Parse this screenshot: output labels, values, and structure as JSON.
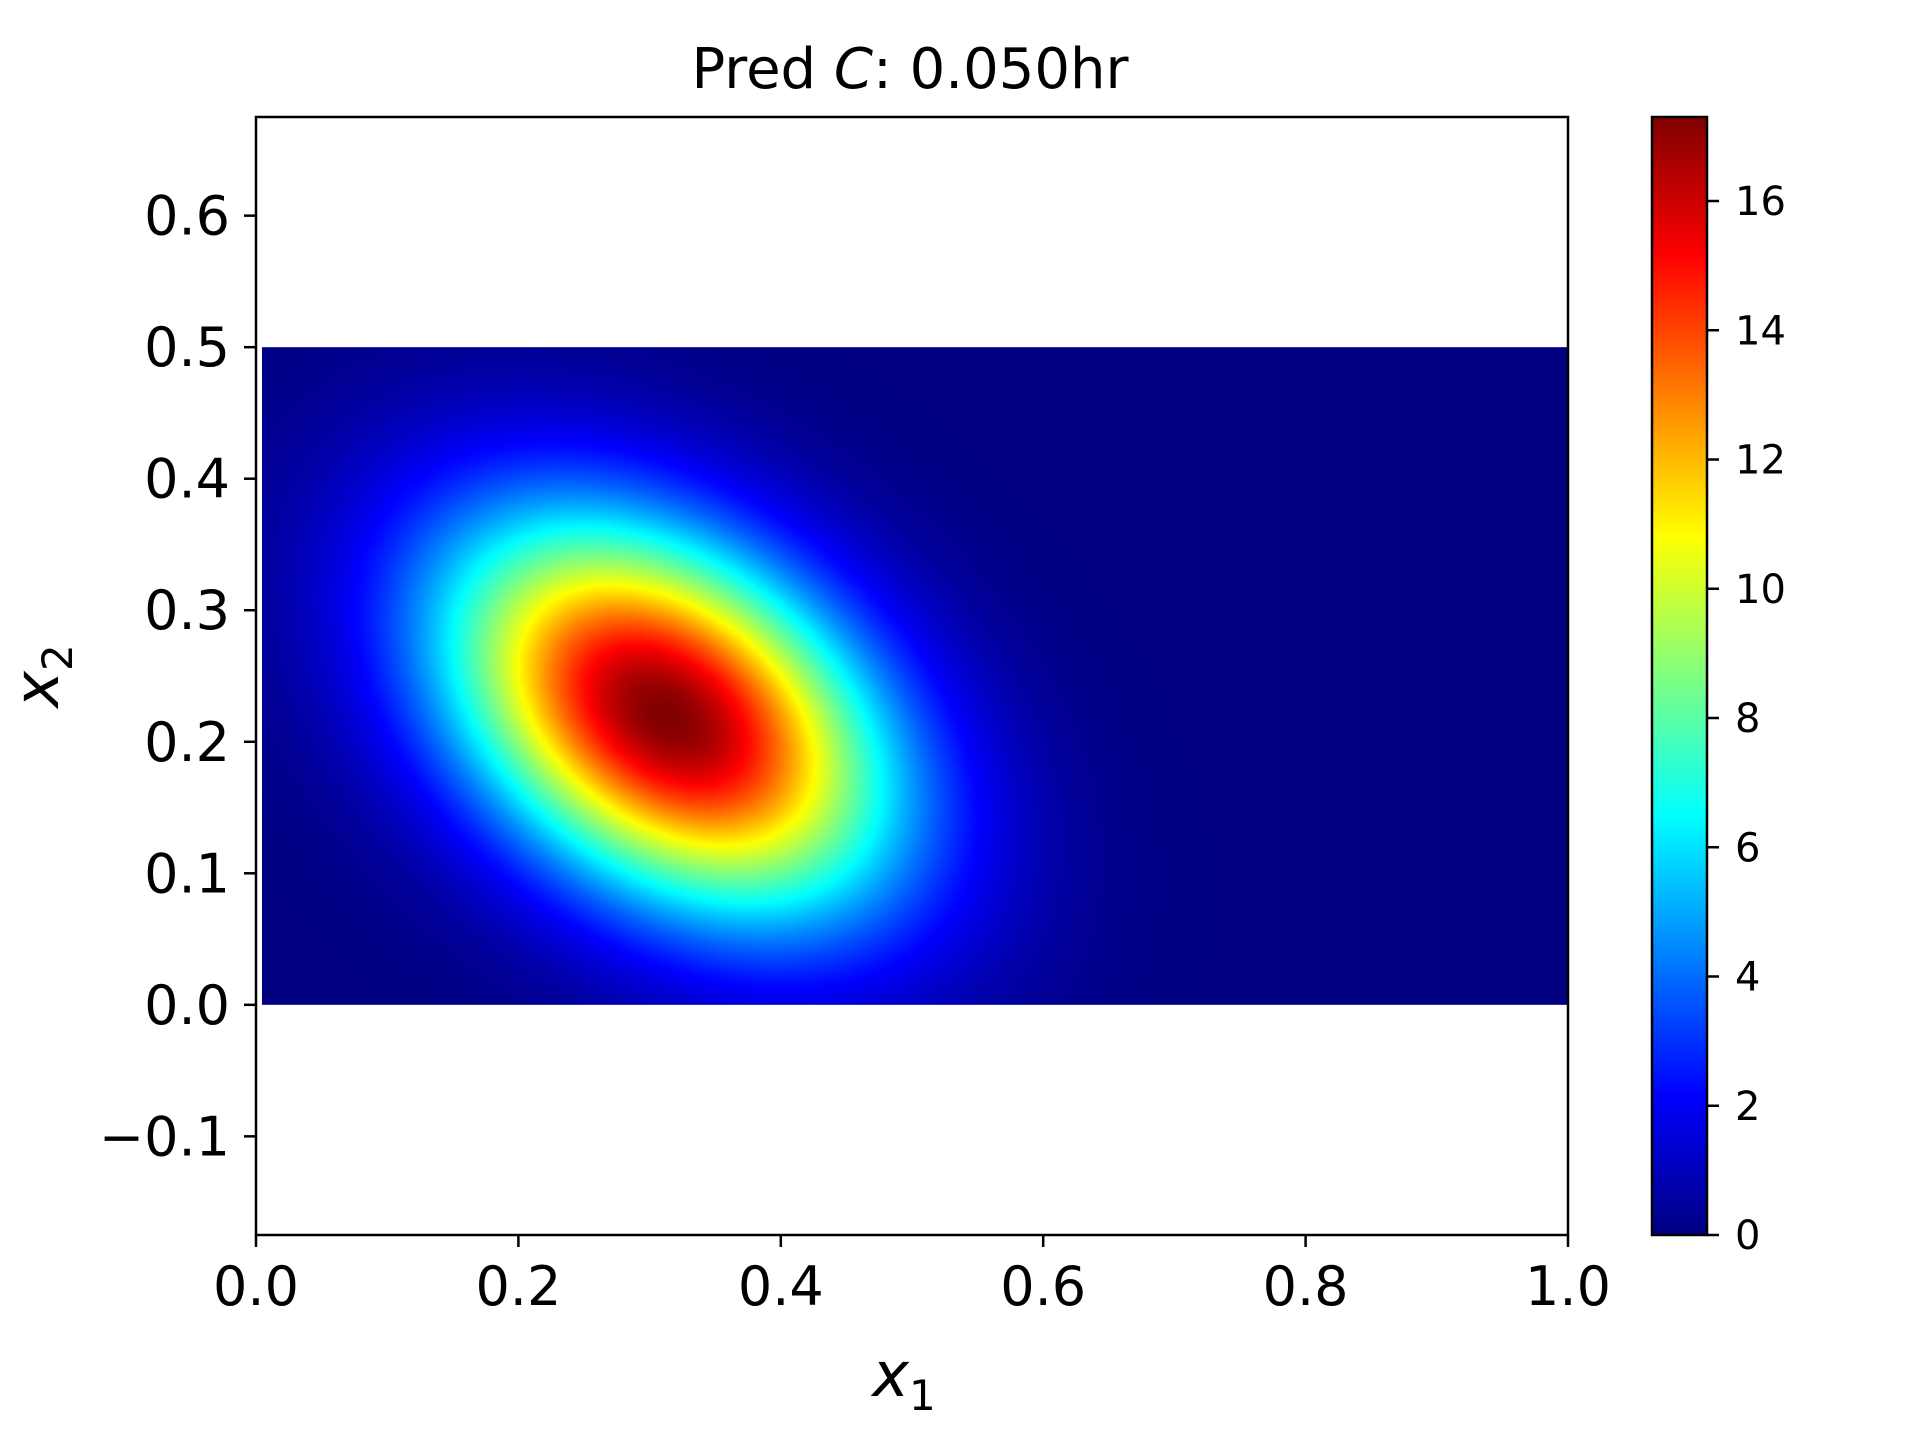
{
  "chart_data": {
    "type": "heatmap",
    "title": "Pred",
    "title_variable": "C",
    "title_suffix": ": 0.050hr",
    "xlabel": "x",
    "xlabel_subscript": "1",
    "ylabel": "x",
    "ylabel_subscript": "2",
    "xlim": [
      0.0,
      1.0
    ],
    "ylim": [
      -0.175,
      0.675
    ],
    "x_ticks": [
      0.0,
      0.2,
      0.4,
      0.6,
      0.8,
      1.0
    ],
    "x_tick_labels": [
      "0.0",
      "0.2",
      "0.4",
      "0.6",
      "0.8",
      "1.0"
    ],
    "y_ticks": [
      -0.1,
      0.0,
      0.1,
      0.2,
      0.3,
      0.4,
      0.5,
      0.6
    ],
    "y_tick_labels": [
      "−0.1",
      "0.0",
      "0.1",
      "0.2",
      "0.3",
      "0.4",
      "0.5",
      "0.6"
    ],
    "data_extent": {
      "x": [
        0.0,
        1.0
      ],
      "y": [
        0.0,
        0.5
      ]
    },
    "field": {
      "description_of_peak": "single rotated Gaussian-like blob",
      "peak_value": 17.3,
      "peak_center": [
        0.31,
        0.22
      ],
      "axis_1_direction_deg": -35,
      "sigma_major": 0.13,
      "sigma_minor": 0.085,
      "min_value": 0
    },
    "colorbar": {
      "colormap": "jet",
      "range": [
        0,
        17.3
      ],
      "ticks": [
        0,
        2,
        4,
        6,
        8,
        10,
        12,
        14,
        16
      ],
      "tick_labels": [
        "0",
        "2",
        "4",
        "6",
        "8",
        "10",
        "12",
        "14",
        "16"
      ]
    },
    "grid": false
  }
}
